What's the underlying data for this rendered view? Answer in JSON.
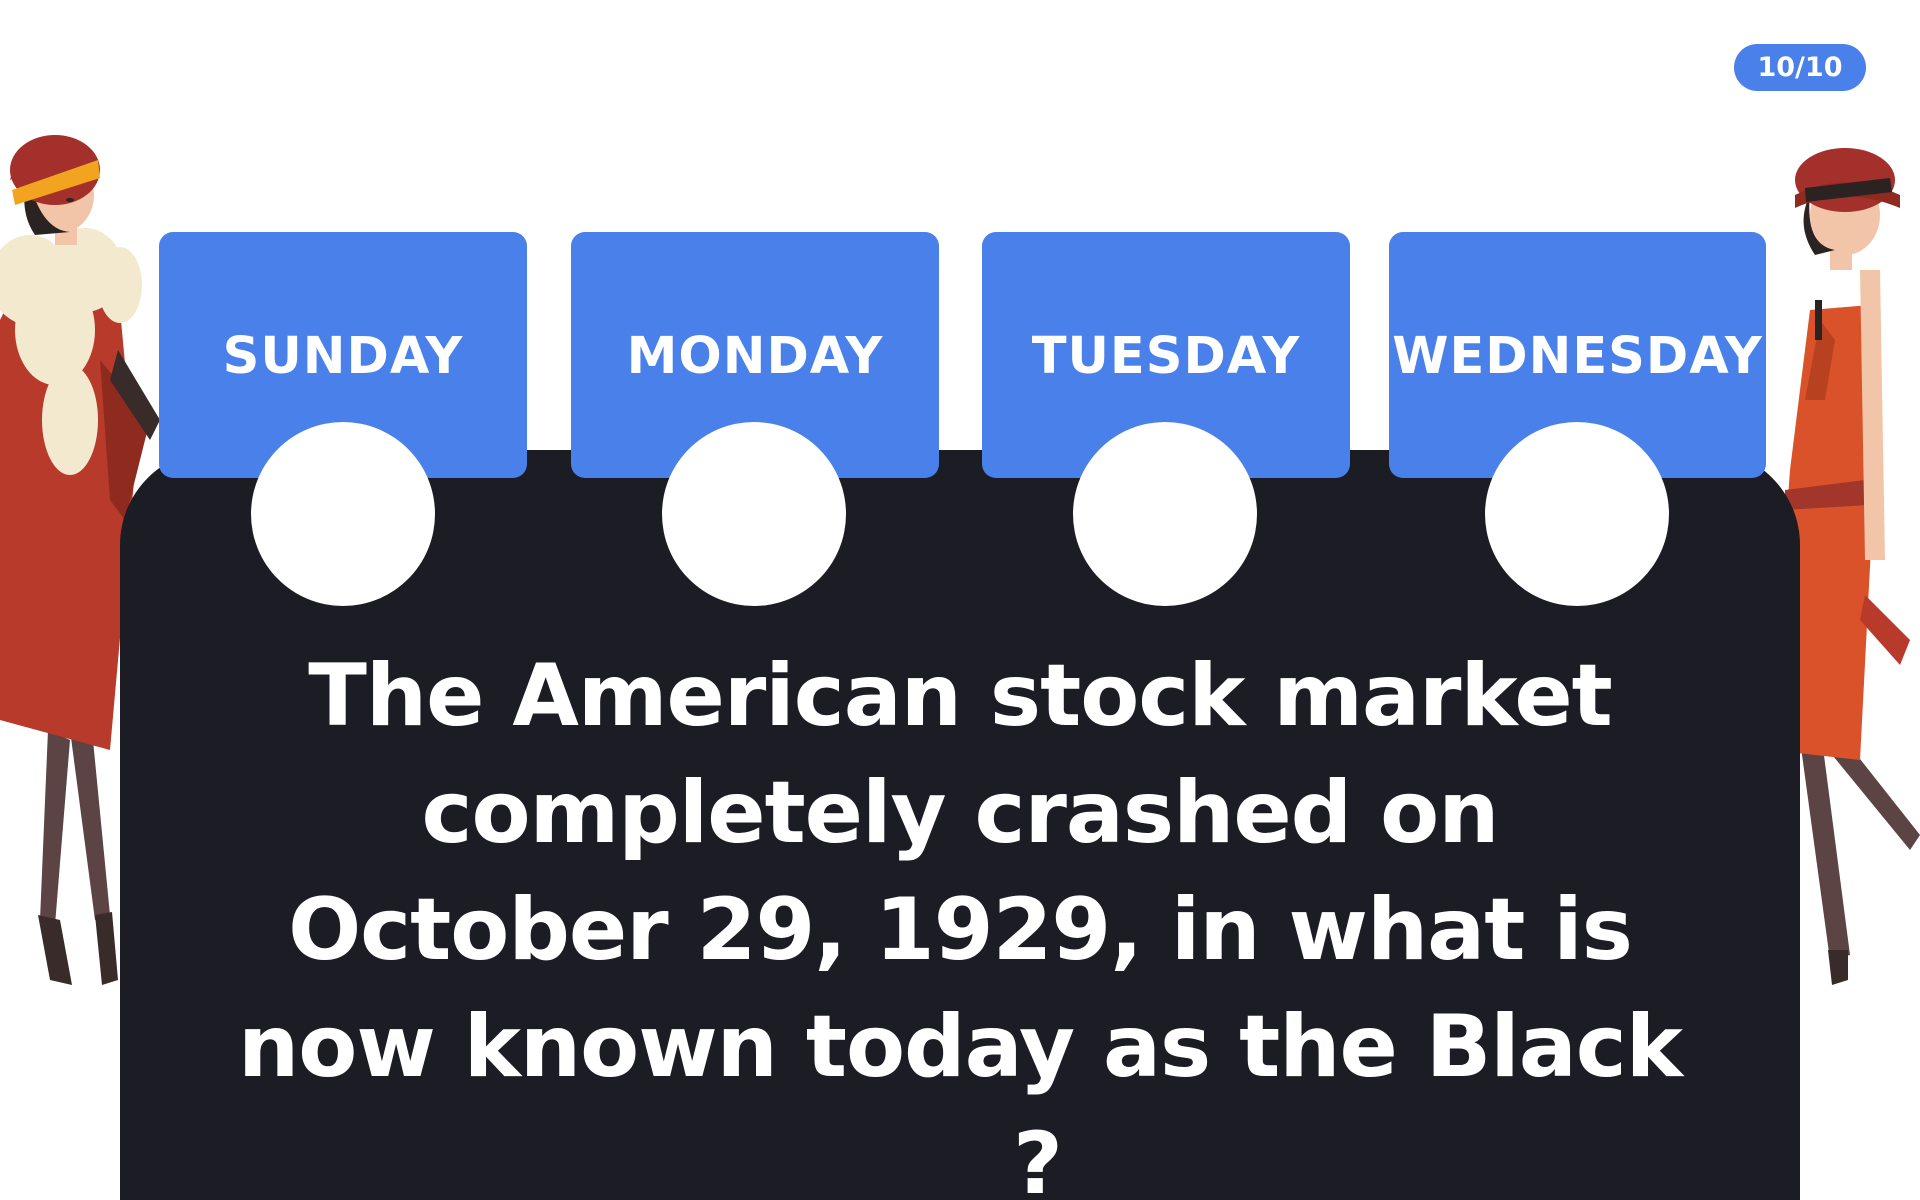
{
  "quiz": {
    "progress": "10/10",
    "question": "The American stock market completely crashed on October 29, 1929, in what is now known today as the Black ___ ?",
    "options": [
      {
        "label": "SUNDAY"
      },
      {
        "label": "MONDAY"
      },
      {
        "label": "TUESDAY"
      },
      {
        "label": "WEDNESDAY"
      }
    ]
  },
  "colors": {
    "accent": "#4a80ea",
    "board": "#1c1c24",
    "text_on_dark": "#ffffff"
  },
  "illustrations": {
    "left": "flapper-woman-fur-stole",
    "right": "flapper-woman-orange-dress"
  }
}
